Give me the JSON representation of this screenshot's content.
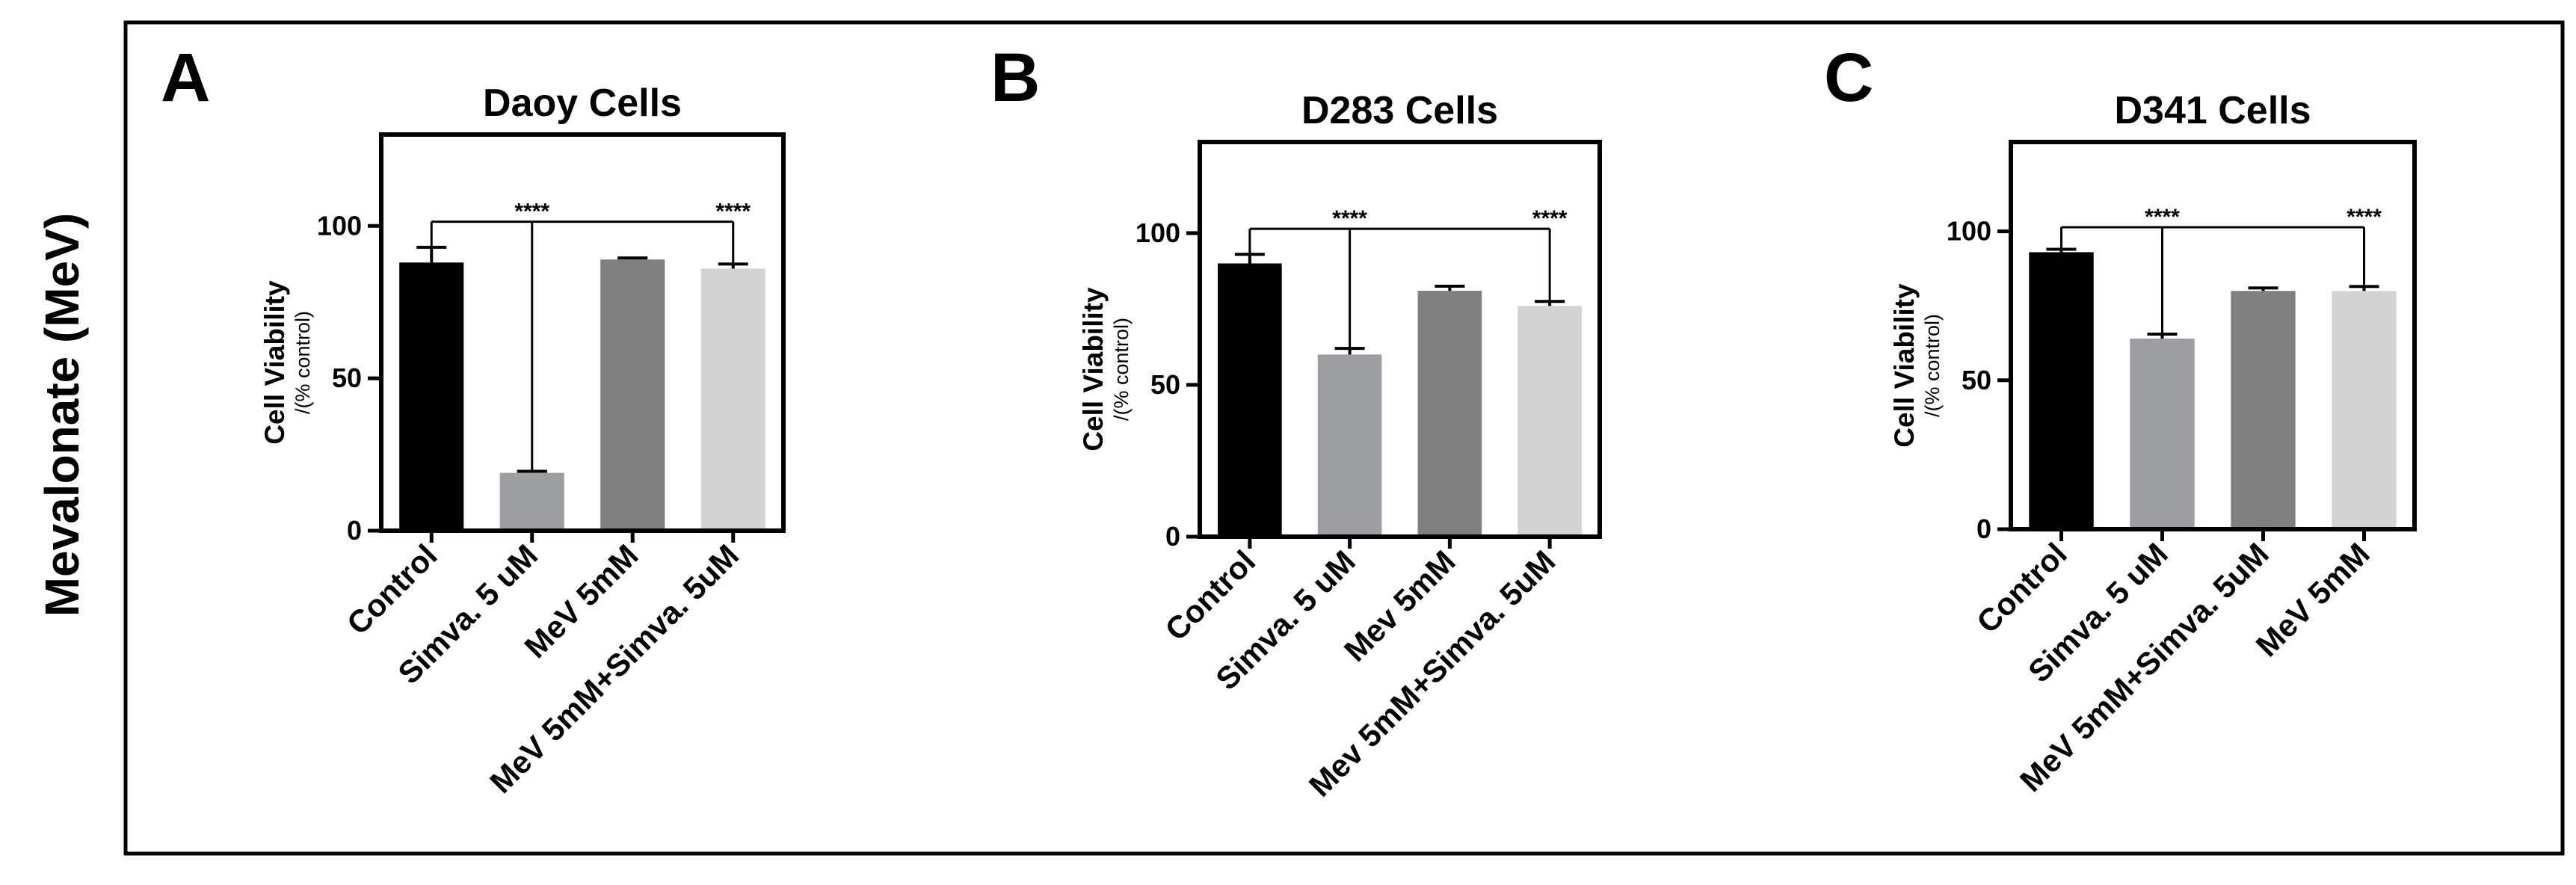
{
  "side_label": "Mevalonate (MeV)",
  "colors": {
    "control": "#000000",
    "simva": "#9d9ea2",
    "mev": "#808080",
    "combo": "#d3d3d3"
  },
  "chart_data": [
    {
      "type": "bar",
      "panel": "A",
      "title": "Daoy Cells",
      "ylabel": "Cell Viability",
      "ylabel_sub": "/(% control)",
      "ylim": [
        0,
        130
      ],
      "yticks": [
        0,
        50,
        100
      ],
      "categories": [
        "Control",
        "Simva. 5 uM",
        "MeV 5mM",
        "MeV 5mM+Simva. 5uM"
      ],
      "values": [
        88,
        19,
        89,
        86
      ],
      "errors": [
        5,
        0.5,
        0.5,
        1.5
      ],
      "bar_colors": [
        "#000000",
        "#9d9ea2",
        "#808080",
        "#d3d3d3"
      ],
      "significance": [
        {
          "from": 0,
          "to": 1,
          "label": "****"
        },
        {
          "from": 0,
          "to": 3,
          "label": "****"
        }
      ]
    },
    {
      "type": "bar",
      "panel": "B",
      "title": "D283 Cells",
      "ylabel": "Cell Viability",
      "ylabel_sub": "/(% control)",
      "ylim": [
        0,
        130
      ],
      "yticks": [
        0,
        50,
        100
      ],
      "categories": [
        "Control",
        "Simva. 5 uM",
        "Mev 5mM",
        "Mev 5mM+Simva. 5uM"
      ],
      "values": [
        90,
        60,
        81,
        76
      ],
      "errors": [
        3,
        2,
        1.5,
        1.5
      ],
      "bar_colors": [
        "#000000",
        "#9d9ea2",
        "#808080",
        "#d3d3d3"
      ],
      "significance": [
        {
          "from": 0,
          "to": 1,
          "label": "****"
        },
        {
          "from": 0,
          "to": 3,
          "label": "****"
        }
      ]
    },
    {
      "type": "bar",
      "panel": "C",
      "title": "D341 Cells",
      "ylabel": "Cell Viability",
      "ylabel_sub": "/(% control)",
      "ylim": [
        0,
        130
      ],
      "yticks": [
        0,
        50,
        100
      ],
      "categories": [
        "Control",
        "Simva. 5 uM",
        "MeV 5mM+Simva. 5uM",
        "MeV 5mM"
      ],
      "values": [
        93,
        64,
        80,
        80
      ],
      "errors": [
        1,
        1.5,
        1,
        1.5
      ],
      "bar_colors": [
        "#000000",
        "#9d9ea2",
        "#808080",
        "#d3d3d3"
      ],
      "significance": [
        {
          "from": 0,
          "to": 1,
          "label": "****"
        },
        {
          "from": 0,
          "to": 3,
          "label": "****"
        }
      ]
    }
  ]
}
